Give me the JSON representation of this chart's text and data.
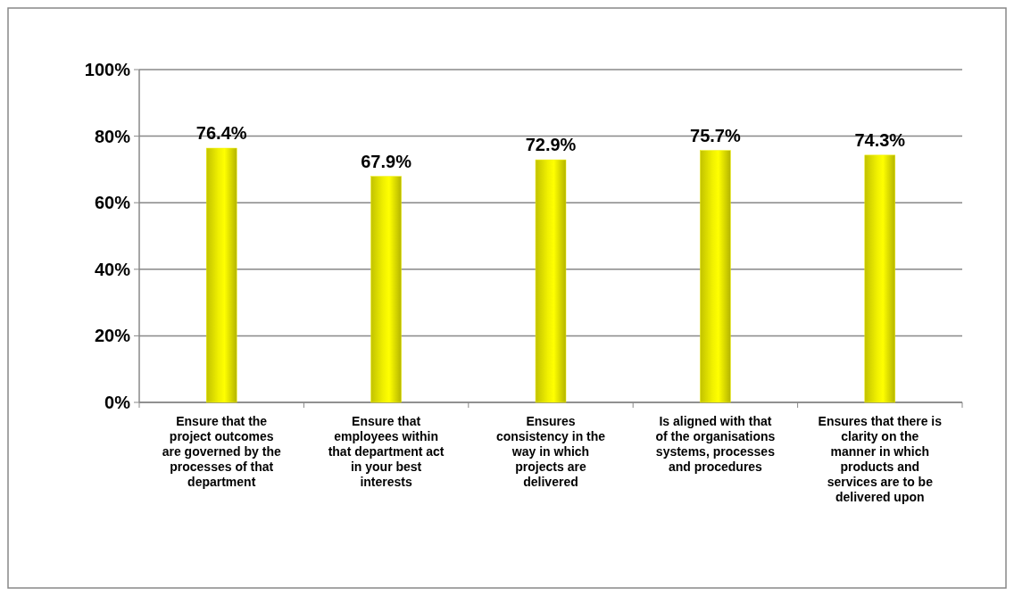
{
  "chart_data": {
    "type": "bar",
    "categories": [
      "Ensure that the project outcomes are governed by the processes of that department",
      "Ensure that employees within that department act in your best interests",
      "Ensures consistency in the way in which projects are delivered",
      "Is aligned with that of the organisations systems, processes and procedures",
      "Ensures that there is clarity on the manner in which products and services are to be delivered upon"
    ],
    "values": [
      76.4,
      67.9,
      72.9,
      75.7,
      74.3
    ],
    "color": "#f0f000",
    "value_labels": [
      "76.4%",
      "67.9%",
      "72.9%",
      "75.7%",
      "74.3%"
    ],
    "ylim": [
      0,
      100
    ],
    "yticks": [
      {
        "value": 0,
        "label": "0%"
      },
      {
        "value": 20,
        "label": "20%"
      },
      {
        "value": 40,
        "label": "40%"
      },
      {
        "value": 60,
        "label": "60%"
      },
      {
        "value": 80,
        "label": "80%"
      },
      {
        "value": 100,
        "label": "100%"
      }
    ],
    "grid": "y"
  }
}
